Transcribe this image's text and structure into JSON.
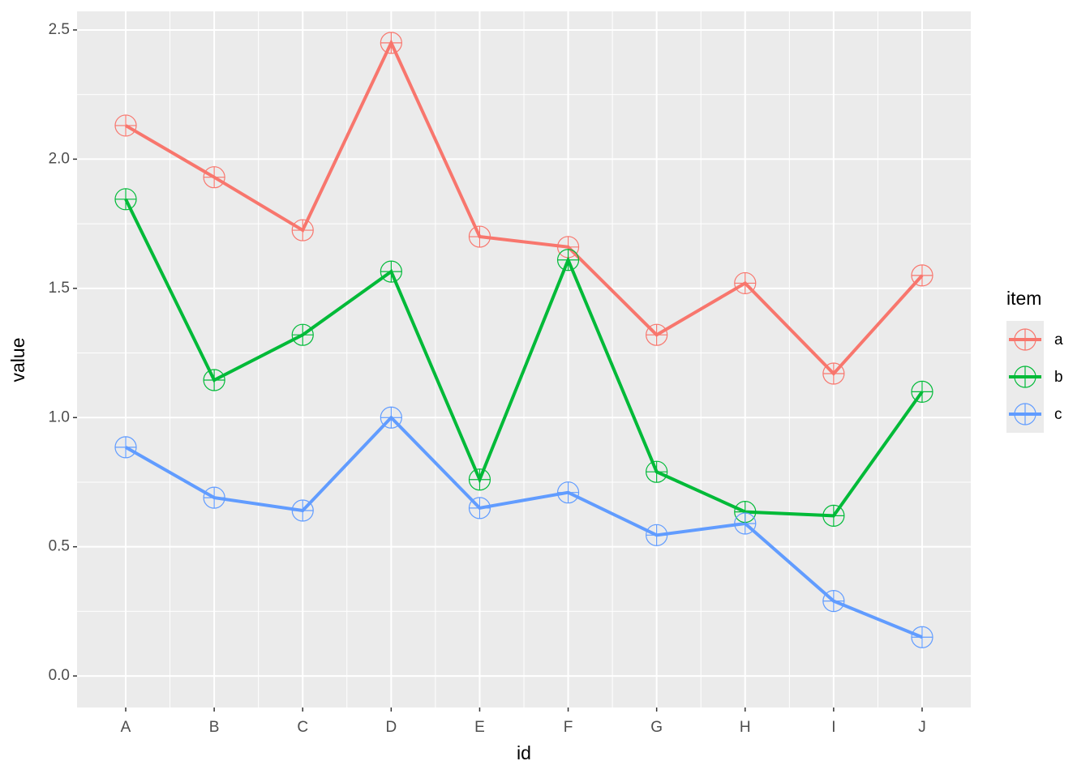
{
  "chart_data": {
    "type": "line",
    "x_label": "id",
    "y_label": "value",
    "categories": [
      "A",
      "B",
      "C",
      "D",
      "E",
      "F",
      "G",
      "H",
      "I",
      "J"
    ],
    "series": [
      {
        "name": "a",
        "color": "#F8766D",
        "values": [
          2.13,
          1.93,
          1.725,
          2.45,
          1.7,
          1.66,
          1.32,
          1.52,
          1.17,
          1.55
        ]
      },
      {
        "name": "b",
        "color": "#00BA38",
        "values": [
          1.845,
          1.145,
          1.32,
          1.565,
          0.76,
          1.61,
          0.79,
          0.635,
          0.62,
          1.1
        ]
      },
      {
        "name": "c",
        "color": "#619CFF",
        "values": [
          0.885,
          0.69,
          0.64,
          1.0,
          0.65,
          0.71,
          0.545,
          0.59,
          0.29,
          0.15
        ]
      }
    ],
    "legend_title": "item",
    "legend_position": "right",
    "ylim": [
      -0.122,
      2.572
    ],
    "yticks": [
      {
        "value": 0,
        "label": "0.0"
      },
      {
        "value": 0.5,
        "label": "0.5"
      },
      {
        "value": 1,
        "label": "1.0"
      },
      {
        "value": 1.5,
        "label": "1.5"
      },
      {
        "value": 2,
        "label": "2.0"
      },
      {
        "value": 2.5,
        "label": "2.5"
      }
    ],
    "grid": true
  }
}
